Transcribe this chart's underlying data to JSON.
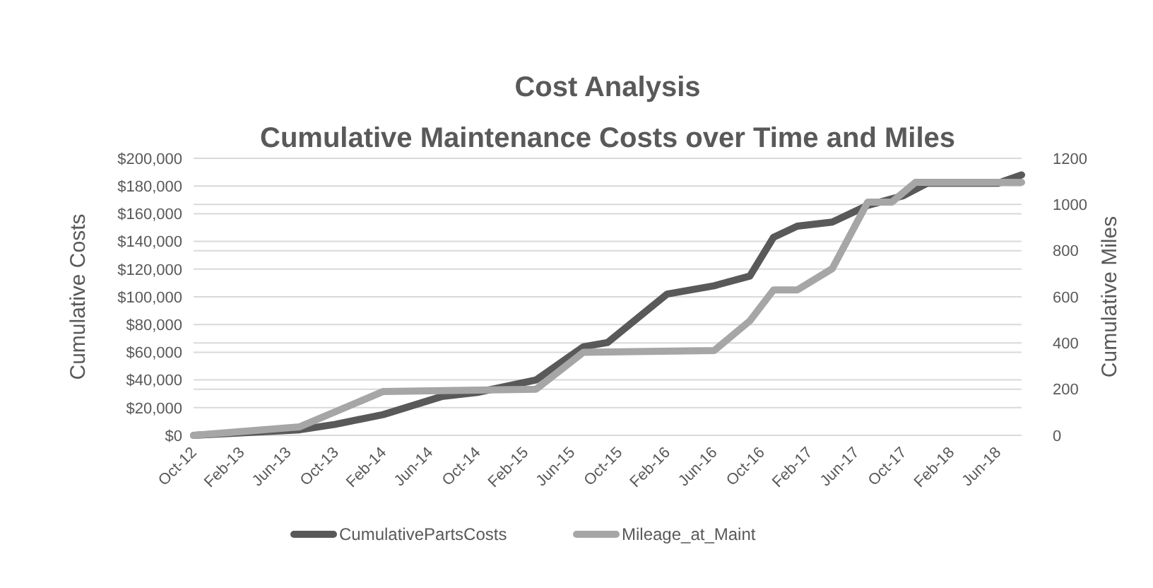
{
  "chart_data": {
    "type": "line",
    "title": "Cost Analysis",
    "subtitle": "Cumulative Maintenance Costs over Time and Miles",
    "ylabel": "Cumulative Costs",
    "y2label": "Cumulative Miles",
    "xlim": [
      "2012-10",
      "2018-08"
    ],
    "xticks": [
      {
        "value": "2012-10",
        "label": "Oct-12"
      },
      {
        "value": "2013-02",
        "label": "Feb-13"
      },
      {
        "value": "2013-06",
        "label": "Jun-13"
      },
      {
        "value": "2013-10",
        "label": "Oct-13"
      },
      {
        "value": "2014-02",
        "label": "Feb-14"
      },
      {
        "value": "2014-06",
        "label": "Jun-14"
      },
      {
        "value": "2014-10",
        "label": "Oct-14"
      },
      {
        "value": "2015-02",
        "label": "Feb-15"
      },
      {
        "value": "2015-06",
        "label": "Jun-15"
      },
      {
        "value": "2015-10",
        "label": "Oct-15"
      },
      {
        "value": "2016-02",
        "label": "Feb-16"
      },
      {
        "value": "2016-06",
        "label": "Jun-16"
      },
      {
        "value": "2016-10",
        "label": "Oct-16"
      },
      {
        "value": "2017-02",
        "label": "Feb-17"
      },
      {
        "value": "2017-06",
        "label": "Jun-17"
      },
      {
        "value": "2017-10",
        "label": "Oct-17"
      },
      {
        "value": "2018-02",
        "label": "Feb-18"
      },
      {
        "value": "2018-06",
        "label": "Jun-18"
      }
    ],
    "ylim": [
      0,
      200000
    ],
    "yticks": [
      {
        "value": 0,
        "label": "$0"
      },
      {
        "value": 20000,
        "label": "$20,000"
      },
      {
        "value": 40000,
        "label": "$40,000"
      },
      {
        "value": 60000,
        "label": "$60,000"
      },
      {
        "value": 80000,
        "label": "$80,000"
      },
      {
        "value": 100000,
        "label": "$100,000"
      },
      {
        "value": 120000,
        "label": "$120,000"
      },
      {
        "value": 140000,
        "label": "$140,000"
      },
      {
        "value": 160000,
        "label": "$160,000"
      },
      {
        "value": 180000,
        "label": "$180,000"
      },
      {
        "value": 200000,
        "label": "$200,000"
      }
    ],
    "y2lim": [
      0,
      1200
    ],
    "y2ticks": [
      0,
      200,
      400,
      600,
      800,
      1000,
      1200
    ],
    "grid": true,
    "legend": "bottom",
    "marker": "none",
    "line_style": "solid",
    "series": [
      {
        "name": "CumulativePartsCosts",
        "color": "#595959",
        "x": [
          "2012-10",
          "2013-07",
          "2013-10",
          "2014-02",
          "2014-07",
          "2014-10",
          "2015-03",
          "2015-07",
          "2015-09",
          "2016-02",
          "2016-06",
          "2016-09",
          "2016-11",
          "2017-01",
          "2017-04",
          "2017-07",
          "2017-10",
          "2017-12",
          "2018-06",
          "2018-08"
        ],
        "values": [
          0,
          4000,
          8000,
          15000,
          28000,
          31000,
          40000,
          64000,
          67000,
          102000,
          108000,
          115000,
          143000,
          151000,
          154000,
          166000,
          173000,
          182000,
          182000,
          188000
        ]
      },
      {
        "name": "Mileage_at_Maint",
        "color": "#a6a6a6",
        "axis": "y2",
        "x": [
          "2012-10",
          "2013-07",
          "2014-02",
          "2015-03",
          "2015-07",
          "2016-06",
          "2016-09",
          "2016-11",
          "2017-01",
          "2017-04",
          "2017-07",
          "2017-09",
          "2017-11",
          "2018-08"
        ],
        "values": [
          0,
          37,
          190,
          200,
          360,
          367,
          496,
          630,
          630,
          722,
          1010,
          1010,
          1096,
          1096
        ]
      }
    ]
  }
}
